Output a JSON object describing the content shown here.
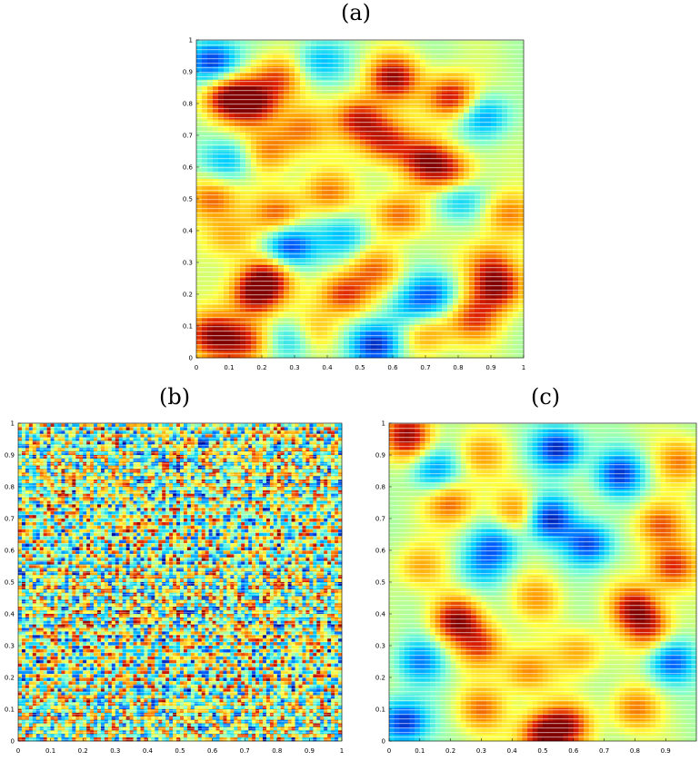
{
  "chart_data": [
    {
      "type": "heatmap",
      "panel_label": "(a)",
      "x_ticks": [
        "0",
        "0.1",
        "0.2",
        "0.3",
        "0.4",
        "0.5",
        "0.6",
        "0.7",
        "0.8",
        "0.9",
        "1"
      ],
      "y_ticks": [
        "0",
        "0.1",
        "0.2",
        "0.3",
        "0.4",
        "0.5",
        "0.6",
        "0.7",
        "0.8",
        "0.9",
        "1"
      ],
      "xlim": [
        0,
        1
      ],
      "ylim": [
        0,
        1
      ],
      "colormap": [
        "#00008f",
        "#0060ff",
        "#00d0ff",
        "#7fffd0",
        "#ffff40",
        "#ffa000",
        "#e02000",
        "#800000"
      ],
      "texture": "coarse",
      "blobs": [
        {
          "x": 0.05,
          "y": 0.93,
          "v": -0.9
        },
        {
          "x": 0.1,
          "y": 0.82,
          "v": 0.9
        },
        {
          "x": 0.18,
          "y": 0.8,
          "v": 0.8
        },
        {
          "x": 0.25,
          "y": 0.88,
          "v": 0.6
        },
        {
          "x": 0.38,
          "y": 0.93,
          "v": -0.5
        },
        {
          "x": 0.6,
          "y": 0.88,
          "v": 0.9
        },
        {
          "x": 0.78,
          "y": 0.82,
          "v": 0.85
        },
        {
          "x": 0.88,
          "y": 0.76,
          "v": -0.6
        },
        {
          "x": 0.5,
          "y": 0.75,
          "v": 0.8
        },
        {
          "x": 0.58,
          "y": 0.68,
          "v": 0.7
        },
        {
          "x": 0.7,
          "y": 0.62,
          "v": 0.8
        },
        {
          "x": 0.78,
          "y": 0.58,
          "v": 0.6
        },
        {
          "x": 0.1,
          "y": 0.62,
          "v": -0.5
        },
        {
          "x": 0.22,
          "y": 0.65,
          "v": 0.5
        },
        {
          "x": 0.32,
          "y": 0.72,
          "v": 0.5
        },
        {
          "x": 0.05,
          "y": 0.5,
          "v": 0.6
        },
        {
          "x": 0.25,
          "y": 0.45,
          "v": 0.6
        },
        {
          "x": 0.4,
          "y": 0.52,
          "v": 0.5
        },
        {
          "x": 0.62,
          "y": 0.45,
          "v": 0.6
        },
        {
          "x": 0.8,
          "y": 0.5,
          "v": -0.5
        },
        {
          "x": 0.95,
          "y": 0.45,
          "v": 0.5
        },
        {
          "x": 0.28,
          "y": 0.35,
          "v": -0.9
        },
        {
          "x": 0.45,
          "y": 0.38,
          "v": -0.5
        },
        {
          "x": 0.1,
          "y": 0.38,
          "v": 0.4
        },
        {
          "x": 0.18,
          "y": 0.2,
          "v": 0.9
        },
        {
          "x": 0.22,
          "y": 0.26,
          "v": 0.7
        },
        {
          "x": 0.45,
          "y": 0.2,
          "v": 0.7
        },
        {
          "x": 0.55,
          "y": 0.28,
          "v": 0.5
        },
        {
          "x": 0.72,
          "y": 0.2,
          "v": -0.6
        },
        {
          "x": 0.92,
          "y": 0.22,
          "v": 0.9
        },
        {
          "x": 0.9,
          "y": 0.3,
          "v": 0.5
        },
        {
          "x": 0.05,
          "y": 0.07,
          "v": 0.85
        },
        {
          "x": 0.15,
          "y": 0.05,
          "v": 0.7
        },
        {
          "x": 0.55,
          "y": 0.04,
          "v": -0.9
        },
        {
          "x": 0.35,
          "y": 0.08,
          "v": 0.5
        },
        {
          "x": 0.7,
          "y": 0.08,
          "v": 0.5
        },
        {
          "x": 0.85,
          "y": 0.12,
          "v": 0.6
        },
        {
          "x": 0.3,
          "y": 0.06,
          "v": -0.6
        },
        {
          "x": 0.65,
          "y": 0.15,
          "v": -0.4
        }
      ]
    },
    {
      "type": "heatmap",
      "panel_label": "(b)",
      "x_ticks": [
        "0",
        "0.1",
        "0.2",
        "0.3",
        "0.4",
        "0.5",
        "0.6",
        "0.7",
        "0.8",
        "0.9",
        "1"
      ],
      "y_ticks": [
        "0",
        "0.1",
        "0.2",
        "0.3",
        "0.4",
        "0.5",
        "0.6",
        "0.7",
        "0.8",
        "0.9",
        "1"
      ],
      "xlim": [
        0,
        1
      ],
      "ylim": [
        0,
        1
      ],
      "colormap": [
        "#00008f",
        "#0060ff",
        "#00d0ff",
        "#7fffd0",
        "#ffff40",
        "#ffa000",
        "#e02000",
        "#800000"
      ],
      "texture": "fine",
      "blobs": []
    },
    {
      "type": "heatmap",
      "panel_label": "(c)",
      "x_ticks": [
        "0",
        "0.1",
        "0.2",
        "0.3",
        "0.4",
        "0.5",
        "0.6",
        "0.7",
        "0.8",
        "0.9"
      ],
      "y_ticks": [
        "0",
        "0.1",
        "0.2",
        "0.3",
        "0.4",
        "0.5",
        "0.6",
        "0.7",
        "0.8",
        "0.9",
        "1"
      ],
      "xlim": [
        0,
        1
      ],
      "ylim": [
        0,
        1
      ],
      "colormap": [
        "#00008f",
        "#0060ff",
        "#00d0ff",
        "#7fffd0",
        "#ffff40",
        "#ffa000",
        "#e02000",
        "#800000"
      ],
      "texture": "coarse",
      "blobs": [
        {
          "x": 0.06,
          "y": 0.96,
          "v": 0.9
        },
        {
          "x": 0.3,
          "y": 0.9,
          "v": 0.4
        },
        {
          "x": 0.55,
          "y": 0.92,
          "v": -0.9
        },
        {
          "x": 0.75,
          "y": 0.84,
          "v": -0.8
        },
        {
          "x": 0.95,
          "y": 0.88,
          "v": 0.5
        },
        {
          "x": 0.2,
          "y": 0.75,
          "v": 0.6
        },
        {
          "x": 0.42,
          "y": 0.72,
          "v": 0.5
        },
        {
          "x": 0.52,
          "y": 0.7,
          "v": -0.9
        },
        {
          "x": 0.65,
          "y": 0.62,
          "v": -0.8
        },
        {
          "x": 0.88,
          "y": 0.68,
          "v": 0.6
        },
        {
          "x": 0.92,
          "y": 0.55,
          "v": 0.7
        },
        {
          "x": 0.1,
          "y": 0.55,
          "v": 0.4
        },
        {
          "x": 0.3,
          "y": 0.55,
          "v": -0.4
        },
        {
          "x": 0.48,
          "y": 0.45,
          "v": 0.4
        },
        {
          "x": 0.8,
          "y": 0.42,
          "v": 0.8
        },
        {
          "x": 0.85,
          "y": 0.35,
          "v": 0.6
        },
        {
          "x": 0.22,
          "y": 0.38,
          "v": 0.9
        },
        {
          "x": 0.3,
          "y": 0.3,
          "v": 0.6
        },
        {
          "x": 0.1,
          "y": 0.25,
          "v": -0.6
        },
        {
          "x": 0.45,
          "y": 0.22,
          "v": 0.5
        },
        {
          "x": 0.62,
          "y": 0.28,
          "v": 0.4
        },
        {
          "x": 0.92,
          "y": 0.25,
          "v": -0.7
        },
        {
          "x": 0.05,
          "y": 0.06,
          "v": -0.9
        },
        {
          "x": 0.5,
          "y": 0.02,
          "v": 0.9
        },
        {
          "x": 0.58,
          "y": 0.05,
          "v": 0.7
        },
        {
          "x": 0.3,
          "y": 0.1,
          "v": 0.5
        },
        {
          "x": 0.8,
          "y": 0.1,
          "v": 0.5
        },
        {
          "x": 0.15,
          "y": 0.85,
          "v": -0.6
        },
        {
          "x": 0.35,
          "y": 0.62,
          "v": -0.6
        }
      ]
    }
  ]
}
